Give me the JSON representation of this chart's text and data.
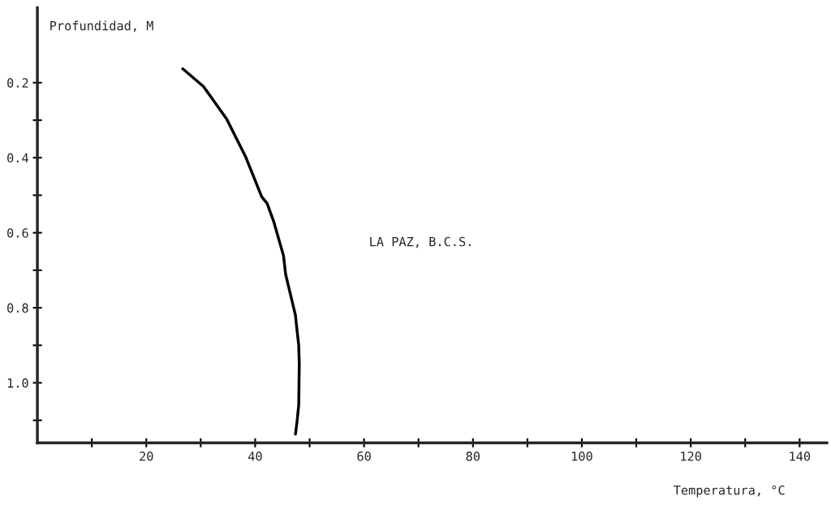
{
  "chart_data": {
    "type": "line",
    "ylabel": "Profundidad, M",
    "xlabel": "Temperatura, °C",
    "annotations": [
      "LA PAZ, B.C.S."
    ],
    "series": [
      {
        "color": "#000000",
        "x": [
          26.7,
          30.5,
          33.0,
          34.8,
          38.2,
          41.2,
          42.2,
          43.4,
          45.2,
          45.6,
          47.4,
          47.5,
          48.0,
          48.1,
          48.0,
          47.7,
          47.4
        ],
        "values": [
          0.163,
          0.21,
          0.261,
          0.298,
          0.396,
          0.504,
          0.522,
          0.57,
          0.661,
          0.711,
          0.82,
          0.835,
          0.9,
          0.95,
          1.059,
          1.102,
          1.137
        ]
      }
    ],
    "xlim": [
      0,
      145
    ],
    "ylim": [
      1.16,
      0
    ],
    "xticks": [
      {
        "value": 10,
        "label": null
      },
      20,
      {
        "value": 30,
        "label": null
      },
      40,
      {
        "value": 50,
        "label": null
      },
      60,
      {
        "value": 70,
        "label": null
      },
      80,
      {
        "value": 90,
        "label": null
      },
      100,
      {
        "value": 110,
        "label": null
      },
      120,
      {
        "value": 130,
        "label": null
      },
      140
    ],
    "yticks": [
      0.2,
      {
        "value": 0.3,
        "label": null
      },
      0.4,
      {
        "value": 0.5,
        "label": null
      },
      0.6,
      {
        "value": 0.7,
        "label": null
      },
      0.8,
      {
        "value": 0.9,
        "label": null
      },
      {
        "value": 1.0,
        "label": "1.0"
      },
      {
        "value": 1.1,
        "label": null
      }
    ],
    "grid": false,
    "legend": false,
    "marker": "none",
    "line_style": "solid"
  }
}
